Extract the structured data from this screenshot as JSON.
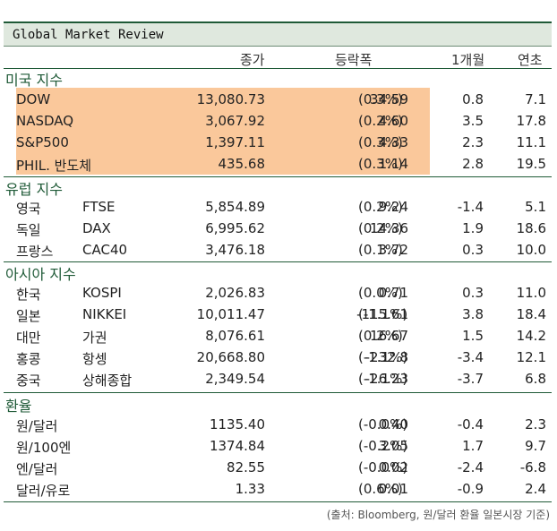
{
  "title": "Global Market Review",
  "headers": {
    "close": "종가",
    "change": "등락폭",
    "month": "1개월",
    "ytd": "연초"
  },
  "sections": {
    "us": "미국 지수",
    "eu": "유럽 지수",
    "asia": "아시아 지수",
    "fx": "환율"
  },
  "rows": [
    {
      "name": "DOW",
      "sub": "",
      "close": "13,080.73",
      "chg": "34.59",
      "pct": "(0.3%)",
      "m1": "0.8",
      "ytd": "7.1"
    },
    {
      "name": "NASDAQ",
      "sub": "",
      "close": "3,067.92",
      "chg": "4.60",
      "pct": "(0.2%)",
      "m1": "3.5",
      "ytd": "17.8"
    },
    {
      "name": "S&P500",
      "sub": "",
      "close": "1,397.11",
      "chg": "4.33",
      "pct": "(0.3%)",
      "m1": "2.3",
      "ytd": "11.1"
    },
    {
      "name": "PHIL. 반도체",
      "sub": "",
      "close": "435.68",
      "chg": "1.14",
      "pct": "(0.3%)",
      "m1": "2.8",
      "ytd": "19.5"
    },
    {
      "name": "영국",
      "sub": "FTSE",
      "close": "5,854.89",
      "chg": "9.24",
      "pct": "(0.2%)",
      "m1": "-1.4",
      "ytd": "5.1"
    },
    {
      "name": "독일",
      "sub": "DAX",
      "close": "6,995.62",
      "chg": "14.36",
      "pct": "(0.2%)",
      "m1": "1.9",
      "ytd": "18.6"
    },
    {
      "name": "프랑스",
      "sub": "CAC40",
      "close": "3,476.18",
      "chg": "3.72",
      "pct": "(0.1%)",
      "m1": "0.3",
      "ytd": "10.0"
    },
    {
      "name": "한국",
      "sub": "KOSPI",
      "close": "2,026.83",
      "chg": "0.71",
      "pct": "(0.0%)",
      "m1": "0.3",
      "ytd": "11.0"
    },
    {
      "name": "일본",
      "sub": "NIKKEI",
      "close": "10,011.47",
      "chg": "-115.61",
      "pct": "(-1.1%)",
      "m1": "3.8",
      "ytd": "18.4"
    },
    {
      "name": "대만",
      "sub": "가권",
      "close": "8,076.61",
      "chg": "16.67",
      "pct": "(0.2%)",
      "m1": "1.5",
      "ytd": "14.2"
    },
    {
      "name": "홍콩",
      "sub": "항셍",
      "close": "20,668.80",
      "chg": "-232.8",
      "pct": "(-1.1%)",
      "m1": "-3.4",
      "ytd": "12.1"
    },
    {
      "name": "중국",
      "sub": "상해종합",
      "close": "2,349.54",
      "chg": "-26.23",
      "pct": "(-1.1%)",
      "m1": "-3.7",
      "ytd": "6.8"
    },
    {
      "name": "원/달러",
      "sub": "",
      "close": "1135.40",
      "chg": "0.40",
      "pct": "(-0.0%)",
      "m1": "-0.4",
      "ytd": "2.3"
    },
    {
      "name": "원/100엔",
      "sub": "",
      "close": "1374.84",
      "chg": "3.05",
      "pct": "(-0.2%)",
      "m1": "1.7",
      "ytd": "9.7"
    },
    {
      "name": "엔/달러",
      "sub": "",
      "close": "82.55",
      "chg": "0.02",
      "pct": "(-0.0%)",
      "m1": "-2.4",
      "ytd": "-6.8"
    },
    {
      "name": "달러/유로",
      "sub": "",
      "close": "1.33",
      "chg": "0.01",
      "pct": "(0.6%)",
      "m1": "-0.9",
      "ytd": "2.4"
    }
  ],
  "source": "(출처: Bloomberg, 원/달러 환율 일본시장 기준)",
  "colors": {
    "accent": "#1f5a37",
    "highlight": "#fac89b",
    "title_bg": "#dfe8de"
  }
}
